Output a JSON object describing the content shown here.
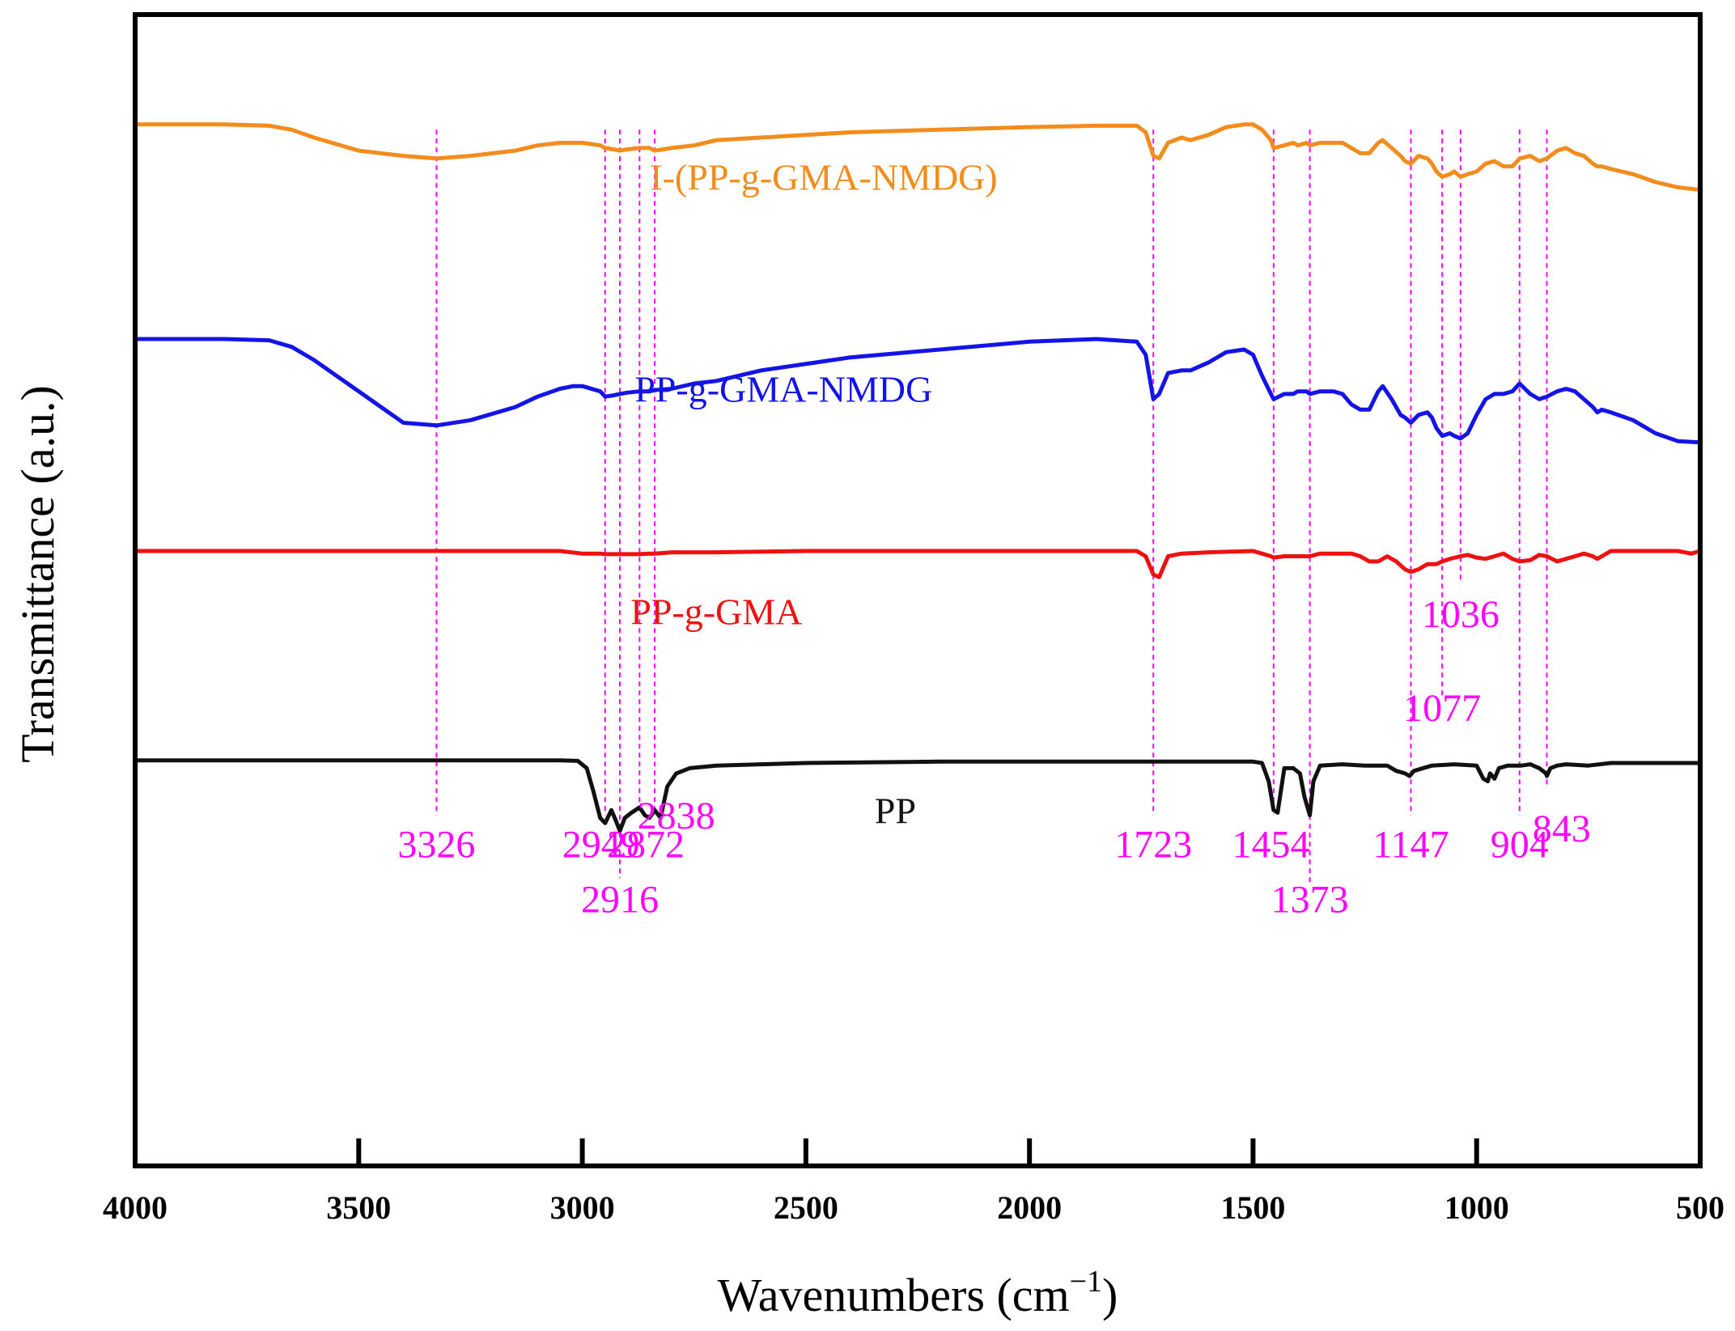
{
  "chart_data": {
    "type": "line",
    "title": "",
    "xlabel": "Wavenumbers (cm",
    "xlabel_sup": "−1",
    "xlabel_close": ")",
    "ylabel": "Transmittance (a.u.)",
    "xlim": [
      4000,
      500
    ],
    "ylim": [
      0,
      4.4
    ],
    "xticks": [
      4000,
      3500,
      3000,
      2500,
      2000,
      1500,
      1000,
      500
    ],
    "xtick_labels": [
      "4000",
      "3500",
      "3000",
      "2500",
      "2000",
      "1500",
      "1000",
      "500"
    ],
    "grid": false,
    "peak_color": "#ff00ff",
    "series": [
      {
        "name": "I-(PP-g-GMA-NMDG)",
        "color": "#f28c1c",
        "start_y": 2.85,
        "x": [
          4000,
          3900,
          3800,
          3700,
          3650,
          3600,
          3500,
          3400,
          3326,
          3250,
          3150,
          3100,
          3050,
          3000,
          2960,
          2949,
          2930,
          2916,
          2900,
          2872,
          2850,
          2838,
          2800,
          2750,
          2700,
          2600,
          2400,
          2200,
          2000,
          1850,
          1760,
          1740,
          1723,
          1710,
          1690,
          1660,
          1640,
          1600,
          1560,
          1520,
          1500,
          1480,
          1460,
          1454,
          1430,
          1410,
          1400,
          1380,
          1373,
          1350,
          1320,
          1300,
          1280,
          1260,
          1240,
          1220,
          1210,
          1190,
          1170,
          1160,
          1147,
          1130,
          1110,
          1100,
          1090,
          1077,
          1060,
          1050,
          1036,
          1020,
          1000,
          980,
          960,
          940,
          920,
          904,
          880,
          860,
          843,
          820,
          800,
          780,
          760,
          740,
          730,
          720,
          700,
          650,
          600,
          550,
          500
        ],
        "y": [
          3.98,
          3.98,
          3.98,
          3.975,
          3.96,
          3.93,
          3.88,
          3.86,
          3.85,
          3.86,
          3.88,
          3.9,
          3.91,
          3.91,
          3.9,
          3.89,
          3.885,
          3.88,
          3.885,
          3.89,
          3.89,
          3.88,
          3.89,
          3.9,
          3.92,
          3.93,
          3.95,
          3.96,
          3.97,
          3.975,
          3.975,
          3.95,
          3.86,
          3.85,
          3.91,
          3.93,
          3.92,
          3.94,
          3.97,
          3.98,
          3.98,
          3.96,
          3.92,
          3.89,
          3.9,
          3.91,
          3.9,
          3.91,
          3.9,
          3.91,
          3.91,
          3.91,
          3.89,
          3.87,
          3.87,
          3.91,
          3.92,
          3.89,
          3.86,
          3.84,
          3.83,
          3.86,
          3.85,
          3.83,
          3.8,
          3.78,
          3.79,
          3.8,
          3.78,
          3.79,
          3.8,
          3.83,
          3.84,
          3.82,
          3.82,
          3.85,
          3.86,
          3.84,
          3.85,
          3.88,
          3.89,
          3.87,
          3.86,
          3.83,
          3.82,
          3.82,
          3.81,
          3.79,
          3.76,
          3.74,
          3.73
        ]
      },
      {
        "name": "PP-g-GMA-NMDG",
        "color": "#1414e6",
        "start_y": 2.02,
        "x": [
          4000,
          3900,
          3800,
          3700,
          3650,
          3600,
          3500,
          3400,
          3326,
          3250,
          3150,
          3100,
          3050,
          3020,
          3000,
          2960,
          2949,
          2930,
          2916,
          2900,
          2872,
          2850,
          2838,
          2800,
          2750,
          2700,
          2600,
          2400,
          2200,
          2000,
          1850,
          1760,
          1740,
          1723,
          1710,
          1690,
          1660,
          1640,
          1600,
          1560,
          1520,
          1500,
          1480,
          1460,
          1454,
          1430,
          1410,
          1400,
          1380,
          1373,
          1350,
          1320,
          1300,
          1280,
          1260,
          1240,
          1220,
          1210,
          1190,
          1170,
          1160,
          1147,
          1130,
          1110,
          1100,
          1090,
          1077,
          1060,
          1050,
          1036,
          1020,
          1000,
          980,
          960,
          940,
          920,
          904,
          880,
          860,
          843,
          820,
          800,
          780,
          760,
          740,
          730,
          720,
          700,
          650,
          600,
          550,
          500
        ],
        "y": [
          3.16,
          3.16,
          3.16,
          3.155,
          3.13,
          3.08,
          2.96,
          2.84,
          2.83,
          2.85,
          2.9,
          2.94,
          2.97,
          2.98,
          2.98,
          2.96,
          2.94,
          2.945,
          2.95,
          2.955,
          2.96,
          2.96,
          2.965,
          2.97,
          2.99,
          3.0,
          3.04,
          3.09,
          3.12,
          3.15,
          3.16,
          3.15,
          3.1,
          2.93,
          2.95,
          3.03,
          3.04,
          3.04,
          3.07,
          3.11,
          3.12,
          3.1,
          3.02,
          2.95,
          2.93,
          2.95,
          2.95,
          2.96,
          2.96,
          2.95,
          2.96,
          2.96,
          2.95,
          2.91,
          2.89,
          2.89,
          2.96,
          2.98,
          2.93,
          2.87,
          2.86,
          2.84,
          2.87,
          2.88,
          2.86,
          2.82,
          2.79,
          2.8,
          2.79,
          2.78,
          2.8,
          2.87,
          2.93,
          2.95,
          2.95,
          2.96,
          2.99,
          2.95,
          2.93,
          2.94,
          2.96,
          2.97,
          2.96,
          2.93,
          2.9,
          2.88,
          2.89,
          2.88,
          2.85,
          2.8,
          2.77,
          2.765
        ]
      },
      {
        "name": "PP-g-GMA",
        "color": "#ee1111",
        "start_y": 0.92,
        "x": [
          4000,
          3800,
          3600,
          3400,
          3200,
          3100,
          3050,
          3000,
          2960,
          2949,
          2930,
          2916,
          2900,
          2872,
          2850,
          2838,
          2800,
          2700,
          2500,
          2200,
          2000,
          1850,
          1760,
          1740,
          1723,
          1710,
          1690,
          1660,
          1600,
          1500,
          1480,
          1460,
          1454,
          1430,
          1400,
          1373,
          1350,
          1300,
          1280,
          1260,
          1240,
          1220,
          1200,
          1180,
          1160,
          1147,
          1130,
          1110,
          1090,
          1077,
          1060,
          1036,
          1020,
          1000,
          980,
          960,
          940,
          920,
          904,
          880,
          860,
          843,
          820,
          800,
          780,
          760,
          740,
          730,
          720,
          700,
          650,
          600,
          550,
          520,
          500
        ],
        "y": [
          2.35,
          2.35,
          2.35,
          2.35,
          2.35,
          2.35,
          2.35,
          2.34,
          2.34,
          2.338,
          2.338,
          2.338,
          2.338,
          2.338,
          2.34,
          2.34,
          2.345,
          2.345,
          2.35,
          2.35,
          2.35,
          2.35,
          2.35,
          2.33,
          2.26,
          2.25,
          2.33,
          2.34,
          2.345,
          2.35,
          2.34,
          2.33,
          2.325,
          2.33,
          2.33,
          2.33,
          2.34,
          2.34,
          2.34,
          2.33,
          2.31,
          2.31,
          2.33,
          2.31,
          2.28,
          2.27,
          2.28,
          2.3,
          2.3,
          2.31,
          2.32,
          2.33,
          2.335,
          2.325,
          2.32,
          2.33,
          2.34,
          2.32,
          2.31,
          2.315,
          2.335,
          2.33,
          2.31,
          2.32,
          2.33,
          2.34,
          2.33,
          2.32,
          2.33,
          2.35,
          2.35,
          2.35,
          2.35,
          2.34,
          2.35
        ]
      },
      {
        "name": "PP",
        "color": "#111111",
        "start_y": null,
        "x": [
          4000,
          3800,
          3600,
          3400,
          3200,
          3100,
          3050,
          3010,
          2990,
          2975,
          2960,
          2949,
          2935,
          2925,
          2916,
          2905,
          2890,
          2872,
          2860,
          2850,
          2838,
          2825,
          2810,
          2790,
          2760,
          2700,
          2500,
          2200,
          2000,
          1800,
          1600,
          1500,
          1480,
          1465,
          1454,
          1445,
          1430,
          1410,
          1395,
          1385,
          1373,
          1365,
          1350,
          1300,
          1250,
          1200,
          1180,
          1160,
          1150,
          1140,
          1100,
          1050,
          1000,
          985,
          975,
          970,
          960,
          950,
          930,
          900,
          880,
          860,
          845,
          843,
          835,
          820,
          800,
          750,
          700,
          600,
          500
        ],
        "y": [
          1.55,
          1.55,
          1.55,
          1.55,
          1.55,
          1.55,
          1.55,
          1.548,
          1.52,
          1.43,
          1.33,
          1.31,
          1.36,
          1.32,
          1.28,
          1.33,
          1.35,
          1.37,
          1.34,
          1.33,
          1.36,
          1.33,
          1.45,
          1.5,
          1.52,
          1.53,
          1.54,
          1.545,
          1.545,
          1.545,
          1.545,
          1.545,
          1.54,
          1.47,
          1.36,
          1.35,
          1.52,
          1.52,
          1.5,
          1.41,
          1.34,
          1.47,
          1.53,
          1.535,
          1.53,
          1.53,
          1.51,
          1.5,
          1.49,
          1.51,
          1.53,
          1.535,
          1.53,
          1.48,
          1.47,
          1.5,
          1.48,
          1.52,
          1.53,
          1.53,
          1.535,
          1.52,
          1.5,
          1.49,
          1.52,
          1.53,
          1.535,
          1.53,
          1.54,
          1.54,
          1.54
        ]
      }
    ],
    "series_labels": [
      {
        "text": "I-(PP-g-GMA-NMDG)",
        "x": 2460,
        "y": 3.73,
        "color": "#f28c1c"
      },
      {
        "text": "PP-g-GMA-NMDG",
        "x": 2550,
        "y": 2.92,
        "color": "#1414e6"
      },
      {
        "text": "PP-g-GMA",
        "x": 2700,
        "y": 2.07,
        "color": "#ee1111"
      },
      {
        "text": "PP",
        "x": 2300,
        "y": 1.31,
        "color": "#111111"
      }
    ],
    "peak_lines": [
      {
        "x": 3326,
        "y_top": 3.96,
        "y_bottom": 1.34
      },
      {
        "x": 2949,
        "y_top": 3.96,
        "y_bottom": 1.34
      },
      {
        "x": 2916,
        "y_top": 3.96,
        "y_bottom": 1.1
      },
      {
        "x": 2872,
        "y_top": 3.96,
        "y_bottom": 1.34
      },
      {
        "x": 2838,
        "y_top": 3.96,
        "y_bottom": 1.34
      },
      {
        "x": 1723,
        "y_top": 3.96,
        "y_bottom": 1.34
      },
      {
        "x": 1454,
        "y_top": 3.96,
        "y_bottom": 1.34
      },
      {
        "x": 1373,
        "y_top": 3.96,
        "y_bottom": 1.08
      },
      {
        "x": 1147,
        "y_top": 3.96,
        "y_bottom": 1.34
      },
      {
        "x": 1077,
        "y_top": 3.96,
        "y_bottom": 1.79
      },
      {
        "x": 1036,
        "y_top": 3.96,
        "y_bottom": 2.23
      },
      {
        "x": 904,
        "y_top": 3.96,
        "y_bottom": 1.34
      },
      {
        "x": 843,
        "y_top": 3.96,
        "y_bottom": 1.45
      }
    ],
    "peak_labels": [
      {
        "text": "3326",
        "x": 3326,
        "y": 1.18
      },
      {
        "text": "2949",
        "x": 2958,
        "y": 1.18
      },
      {
        "text": "2916",
        "x": 2916,
        "y": 0.97
      },
      {
        "text": "2872",
        "x": 2858,
        "y": 1.18
      },
      {
        "text": "2838",
        "x": 2790,
        "y": 1.29
      },
      {
        "text": "1723",
        "x": 1723,
        "y": 1.18
      },
      {
        "text": "1454",
        "x": 1460,
        "y": 1.18
      },
      {
        "text": "1373",
        "x": 1373,
        "y": 0.97
      },
      {
        "text": "1147",
        "x": 1147,
        "y": 1.18
      },
      {
        "text": "1077",
        "x": 1077,
        "y": 1.7
      },
      {
        "text": "1036",
        "x": 1036,
        "y": 2.06
      },
      {
        "text": "904",
        "x": 904,
        "y": 1.18
      },
      {
        "text": "843",
        "x": 810,
        "y": 1.24
      }
    ]
  }
}
